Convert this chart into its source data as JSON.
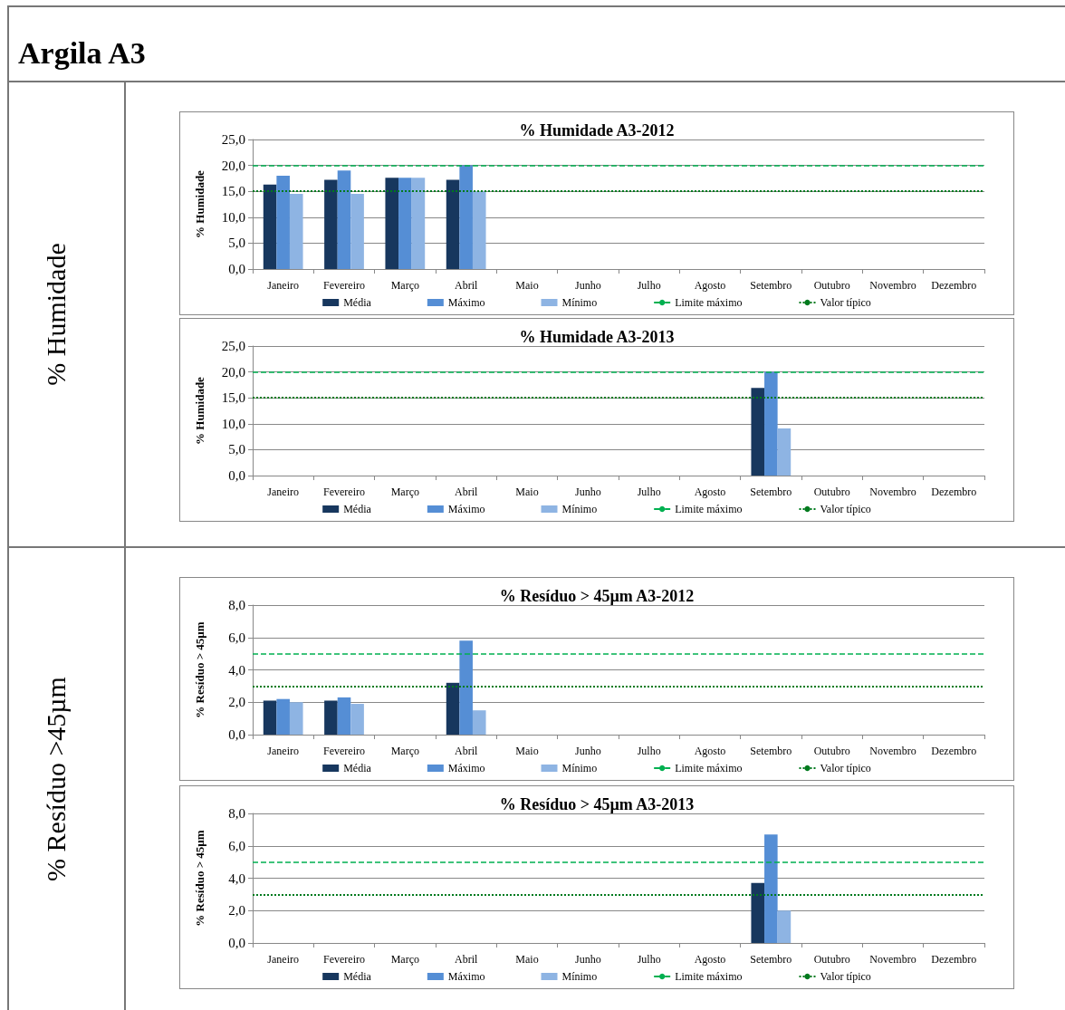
{
  "chart_data": [
    {
      "type": "bar",
      "title": "% Humidade A3-2012",
      "ylabel": "% Humidade",
      "annotations": [
        "Argila A3",
        "% Humidade"
      ],
      "categories": [
        "Janeiro",
        "Fevereiro",
        "Março",
        "Abril",
        "Maio",
        "Junho",
        "Julho",
        "Agosto",
        "Setembro",
        "Outubro",
        "Novembro",
        "Dezembro"
      ],
      "series": [
        {
          "name": "Média",
          "color": "#17375e",
          "values": [
            16.3,
            17.2,
            17.6,
            17.2,
            null,
            null,
            null,
            null,
            null,
            null,
            null,
            null
          ]
        },
        {
          "name": "Máximo",
          "color": "#558ed5",
          "values": [
            18.0,
            19.0,
            17.6,
            20.0,
            null,
            null,
            null,
            null,
            null,
            null,
            null,
            null
          ]
        },
        {
          "name": "Mínimo",
          "color": "#8eb4e3",
          "values": [
            14.5,
            14.5,
            17.6,
            15.0,
            null,
            null,
            null,
            null,
            null,
            null,
            null,
            null
          ]
        }
      ],
      "ref_lines": [
        {
          "axis": "y",
          "value": 20,
          "label": "Limite máximo",
          "color": "#00b050",
          "line_style": "dashed"
        },
        {
          "axis": "y",
          "value": 15,
          "label": "Valor típico",
          "color": "#007a1e",
          "line_style": "dotted"
        }
      ],
      "ylim": [
        0,
        25
      ],
      "yticks": [
        {
          "value": 0,
          "label": "0,0"
        },
        {
          "value": 5,
          "label": "5,0"
        },
        {
          "value": 10,
          "label": "10,0"
        },
        {
          "value": 15,
          "label": "15,0"
        },
        {
          "value": 20,
          "label": "20,0"
        },
        {
          "value": 25,
          "label": "25,0"
        }
      ],
      "grid": "y",
      "legend": "bottom"
    },
    {
      "type": "bar",
      "title": "% Humidade A3-2013",
      "ylabel": "% Humidade",
      "categories": [
        "Janeiro",
        "Fevereiro",
        "Março",
        "Abril",
        "Maio",
        "Junho",
        "Julho",
        "Agosto",
        "Setembro",
        "Outubro",
        "Novembro",
        "Dezembro"
      ],
      "series": [
        {
          "name": "Média",
          "color": "#17375e",
          "values": [
            null,
            null,
            null,
            null,
            null,
            null,
            null,
            null,
            16.9,
            null,
            null,
            null
          ]
        },
        {
          "name": "Máximo",
          "color": "#558ed5",
          "values": [
            null,
            null,
            null,
            null,
            null,
            null,
            null,
            null,
            20.0,
            null,
            null,
            null
          ]
        },
        {
          "name": "Mínimo",
          "color": "#8eb4e3",
          "values": [
            null,
            null,
            null,
            null,
            null,
            null,
            null,
            null,
            9.1,
            null,
            null,
            null
          ]
        }
      ],
      "ref_lines": [
        {
          "axis": "y",
          "value": 20,
          "label": "Limite máximo",
          "color": "#00b050",
          "line_style": "dashed"
        },
        {
          "axis": "y",
          "value": 15,
          "label": "Valor típico",
          "color": "#007a1e",
          "line_style": "dotted"
        }
      ],
      "ylim": [
        0,
        25
      ],
      "yticks": [
        {
          "value": 0,
          "label": "0,0"
        },
        {
          "value": 5,
          "label": "5,0"
        },
        {
          "value": 10,
          "label": "10,0"
        },
        {
          "value": 15,
          "label": "15,0"
        },
        {
          "value": 20,
          "label": "20,0"
        },
        {
          "value": 25,
          "label": "25,0"
        }
      ],
      "grid": "y",
      "legend": "bottom"
    },
    {
      "type": "bar",
      "title": "% Resíduo > 45µm A3-2012",
      "ylabel": "% Resíduo > 45µm",
      "annotations": [
        "% Resíduo >45µm"
      ],
      "categories": [
        "Janeiro",
        "Fevereiro",
        "Março",
        "Abril",
        "Maio",
        "Junho",
        "Julho",
        "Agosto",
        "Setembro",
        "Outubro",
        "Novembro",
        "Dezembro"
      ],
      "series": [
        {
          "name": "Média",
          "color": "#17375e",
          "values": [
            2.1,
            2.1,
            null,
            3.2,
            null,
            null,
            null,
            null,
            null,
            null,
            null,
            null
          ]
        },
        {
          "name": "Máximo",
          "color": "#558ed5",
          "values": [
            2.2,
            2.3,
            null,
            5.8,
            null,
            null,
            null,
            null,
            null,
            null,
            null,
            null
          ]
        },
        {
          "name": "Mínimo",
          "color": "#8eb4e3",
          "values": [
            2.0,
            1.9,
            null,
            1.5,
            null,
            null,
            null,
            null,
            null,
            null,
            null,
            null
          ]
        }
      ],
      "ref_lines": [
        {
          "axis": "y",
          "value": 5,
          "label": "Limite máximo",
          "color": "#00b050",
          "line_style": "dashed"
        },
        {
          "axis": "y",
          "value": 3,
          "label": "Valor típico",
          "color": "#007a1e",
          "line_style": "dotted"
        }
      ],
      "ylim": [
        0,
        8
      ],
      "yticks": [
        {
          "value": 0,
          "label": "0,0"
        },
        {
          "value": 2,
          "label": "2,0"
        },
        {
          "value": 4,
          "label": "4,0"
        },
        {
          "value": 6,
          "label": "6,0"
        },
        {
          "value": 8,
          "label": "8,0"
        }
      ],
      "grid": "y",
      "legend": "bottom"
    },
    {
      "type": "bar",
      "title": "% Resíduo > 45µm A3-2013",
      "ylabel": "% Resíduo > 45µm",
      "categories": [
        "Janeiro",
        "Fevereiro",
        "Março",
        "Abril",
        "Maio",
        "Junho",
        "Julho",
        "Agosto",
        "Setembro",
        "Outubro",
        "Novembro",
        "Dezembro"
      ],
      "series": [
        {
          "name": "Média",
          "color": "#17375e",
          "values": [
            null,
            null,
            null,
            null,
            null,
            null,
            null,
            null,
            3.7,
            null,
            null,
            null
          ]
        },
        {
          "name": "Máximo",
          "color": "#558ed5",
          "values": [
            null,
            null,
            null,
            null,
            null,
            null,
            null,
            null,
            6.7,
            null,
            null,
            null
          ]
        },
        {
          "name": "Mínimo",
          "color": "#8eb4e3",
          "values": [
            null,
            null,
            null,
            null,
            null,
            null,
            null,
            null,
            2.0,
            null,
            null,
            null
          ]
        }
      ],
      "ref_lines": [
        {
          "axis": "y",
          "value": 5,
          "label": "Limite máximo",
          "color": "#00b050",
          "line_style": "dashed"
        },
        {
          "axis": "y",
          "value": 3,
          "label": "Valor típico",
          "color": "#007a1e",
          "line_style": "dotted"
        }
      ],
      "ylim": [
        0,
        8
      ],
      "yticks": [
        {
          "value": 0,
          "label": "0,0"
        },
        {
          "value": 2,
          "label": "2,0"
        },
        {
          "value": 4,
          "label": "4,0"
        },
        {
          "value": 6,
          "label": "6,0"
        },
        {
          "value": 8,
          "label": "8,0"
        }
      ],
      "grid": "y",
      "legend": "bottom"
    }
  ]
}
